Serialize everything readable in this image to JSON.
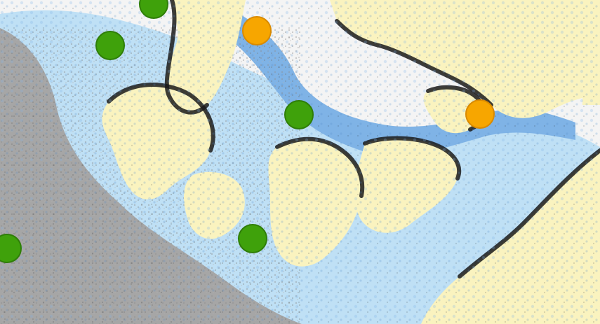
{
  "map": {
    "colors": {
      "land": "#faf3bf",
      "water_deep": "#7fb3e6",
      "water_shallow": "#bfe0f5",
      "shore_dark": "#1a1a1a",
      "mudflat_gray": "#a6a6a6",
      "open_water": "#f4f4f4",
      "marker_green": "#3fa10b",
      "marker_orange": "#f7a600"
    },
    "markers": [
      {
        "id": "green-1",
        "category": "green"
      },
      {
        "id": "green-2",
        "category": "green"
      },
      {
        "id": "orange-1",
        "category": "orange"
      },
      {
        "id": "green-3",
        "category": "green"
      },
      {
        "id": "orange-2",
        "category": "orange"
      },
      {
        "id": "green-4",
        "category": "green"
      },
      {
        "id": "green-5",
        "category": "green"
      }
    ]
  }
}
